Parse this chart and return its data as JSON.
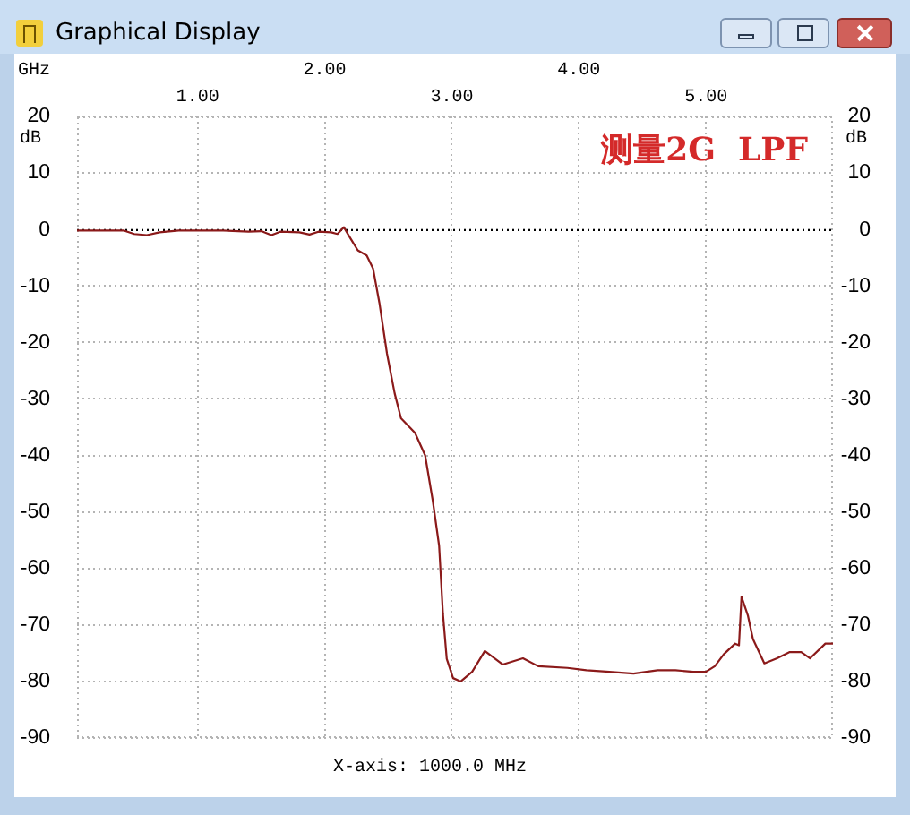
{
  "chart_data": {
    "type": "line",
    "title": "Graphical Display",
    "x2label": "GHz",
    "ylabel": "dB",
    "y2label": "dB",
    "annotations": [
      "测量2G  LPF",
      "X-axis: 1000.0 MHz"
    ],
    "x": [
      0.05,
      0.42,
      0.5,
      0.6,
      0.7,
      0.85,
      1.2,
      1.4,
      1.5,
      1.58,
      1.65,
      1.8,
      1.88,
      1.95,
      2.05,
      2.1,
      2.15,
      2.2,
      2.26,
      2.33,
      2.38,
      2.43,
      2.49,
      2.55,
      2.6,
      2.71,
      2.79,
      2.85,
      2.9,
      2.93,
      2.96,
      3.01,
      3.07,
      3.16,
      3.26,
      3.4,
      3.56,
      3.68,
      3.91,
      4.06,
      4.24,
      4.43,
      4.62,
      4.76,
      4.9,
      5.0,
      5.07,
      5.14,
      5.23,
      5.26,
      5.28,
      5.33,
      5.37,
      5.46,
      5.56,
      5.66,
      5.75,
      5.82,
      5.94,
      6.0
    ],
    "values": [
      -0.2,
      -0.2,
      -0.8,
      -1.0,
      -0.5,
      -0.2,
      -0.2,
      -0.4,
      -0.3,
      -1.0,
      -0.4,
      -0.5,
      -0.9,
      -0.4,
      -0.5,
      -0.8,
      0.4,
      -1.5,
      -3.7,
      -4.6,
      -6.9,
      -13,
      -22,
      -29,
      -33.4,
      -36,
      -40,
      -48,
      -56,
      -68,
      -76,
      -79.4,
      -80,
      -78.3,
      -74.6,
      -77,
      -75.9,
      -77.3,
      -77.6,
      -78,
      -78.3,
      -78.6,
      -78,
      -78,
      -78.3,
      -78.3,
      -77.3,
      -75.2,
      -73.3,
      -73.6,
      -65,
      -68.3,
      -72.5,
      -76.8,
      -75.9,
      -74.8,
      -74.8,
      -75.9,
      -73.3,
      -73.3
    ],
    "color": "#8b1a1a",
    "xlim": [
      0.05,
      6
    ],
    "xticks": [
      {
        "value": 1,
        "label": "1.00"
      },
      {
        "value": 2,
        "label": null
      },
      {
        "value": 3,
        "label": "3.00"
      },
      {
        "value": 4,
        "label": null
      },
      {
        "value": 5,
        "label": "5.00"
      }
    ],
    "x2lim": [
      0.05,
      6
    ],
    "x2ticks": [
      {
        "value": 2,
        "label": "2.00"
      },
      {
        "value": 4,
        "label": "4.00"
      }
    ],
    "ylim": [
      -90,
      20
    ],
    "yticks": [
      20,
      10,
      0,
      -10,
      -20,
      -30,
      -40,
      -50,
      -60,
      -70,
      -80,
      -90
    ],
    "y2lim": [
      -90,
      20
    ],
    "y2ticks": [
      20,
      10,
      0,
      -10,
      -20,
      -30,
      -40,
      -50,
      -60,
      -70,
      -80,
      -90
    ],
    "ref_lines": [
      {
        "axis": "y",
        "value": 0,
        "color": "#000000",
        "line_style": "dotted"
      }
    ],
    "grid": true,
    "legend": false
  }
}
